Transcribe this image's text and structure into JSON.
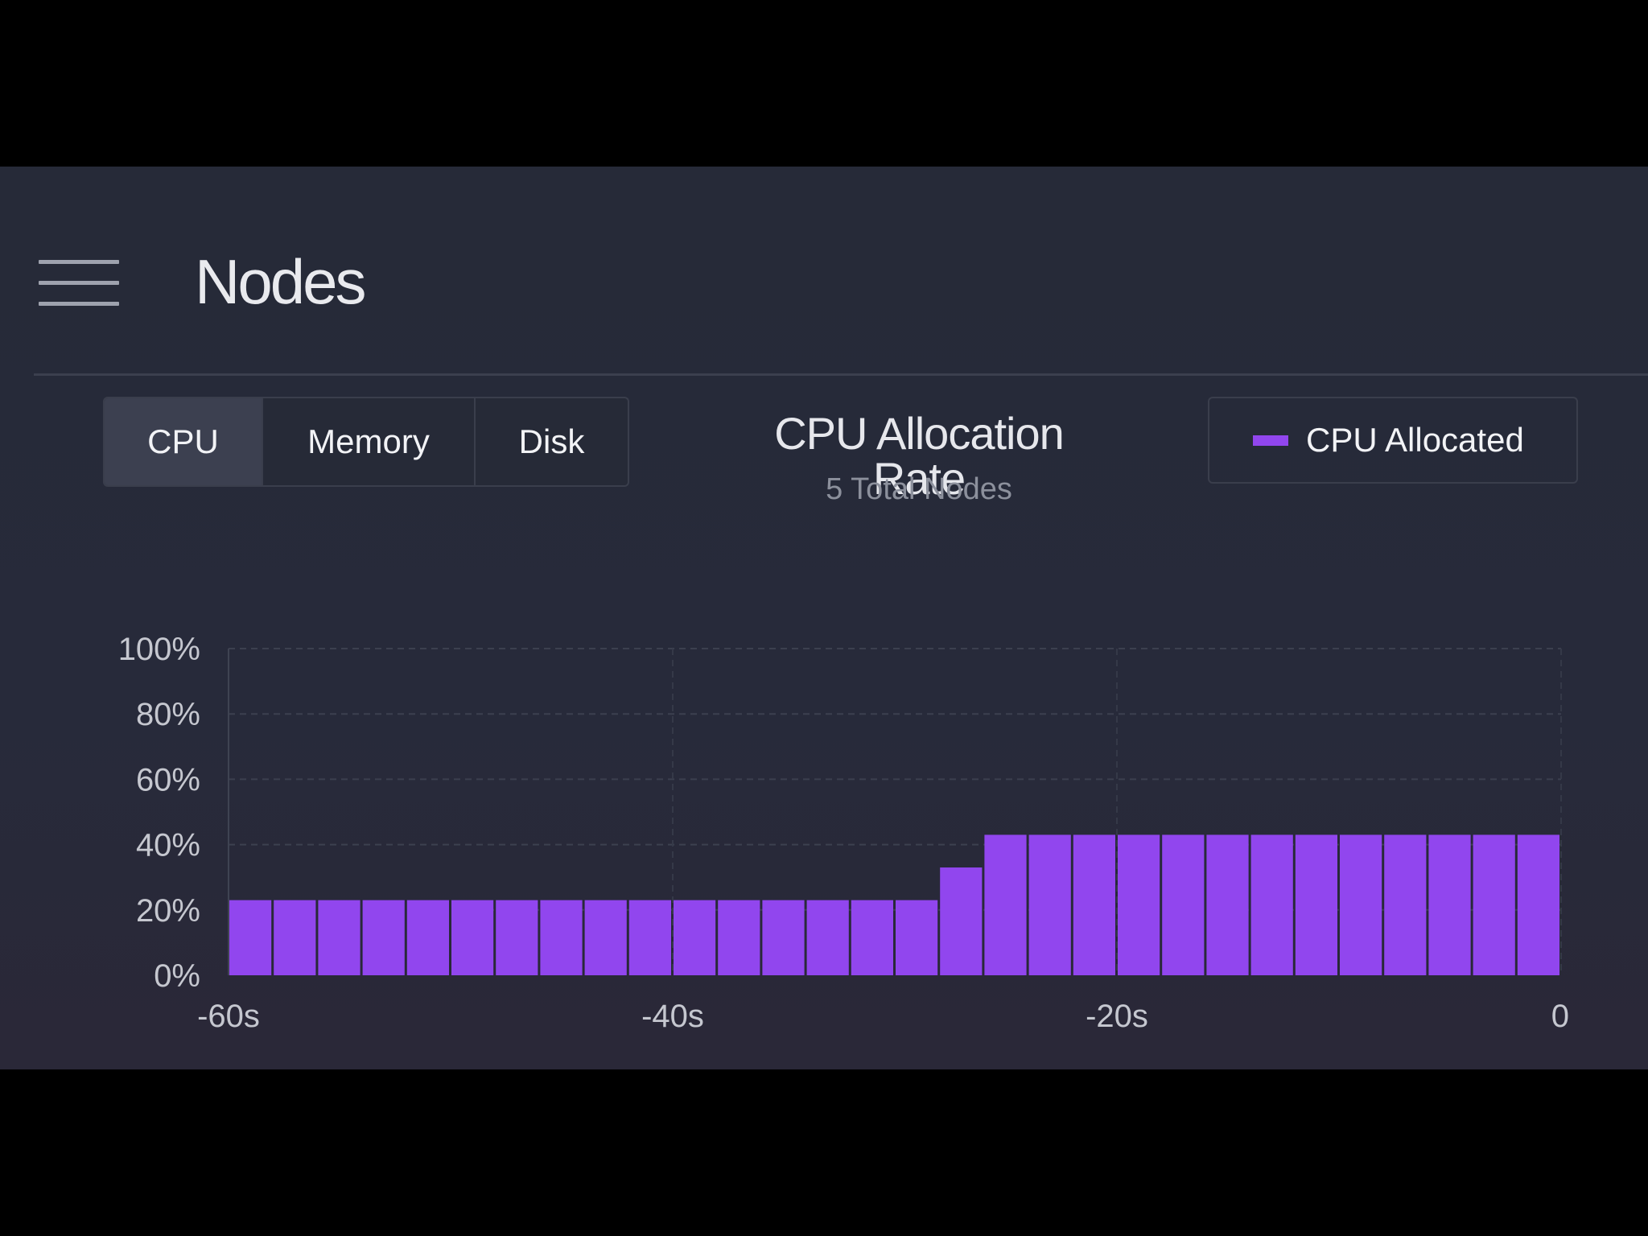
{
  "header": {
    "title": "Nodes",
    "menu_icon": "hamburger-menu-icon"
  },
  "tabs": [
    {
      "label": "CPU",
      "active": true
    },
    {
      "label": "Memory",
      "active": false
    },
    {
      "label": "Disk",
      "active": false
    }
  ],
  "legend": {
    "label": "CPU Allocated",
    "color": "#9146ee"
  },
  "chart_data": {
    "type": "bar",
    "title": "CPU Allocation Rate",
    "subtitle": "5 Total Nodes",
    "xlabel": "",
    "ylabel": "",
    "x_ticks": [
      "-60s",
      "-40s",
      "-20s",
      "0"
    ],
    "y_ticks": [
      "0%",
      "20%",
      "40%",
      "60%",
      "80%",
      "100%"
    ],
    "xlim": [
      -60,
      0
    ],
    "ylim": [
      0,
      100
    ],
    "grid": true,
    "series": [
      {
        "name": "CPU Allocated",
        "color": "#9146ee",
        "values": [
          23,
          23,
          23,
          23,
          23,
          23,
          23,
          23,
          23,
          23,
          23,
          23,
          23,
          23,
          23,
          23,
          33,
          43,
          43,
          43,
          43,
          43,
          43,
          43,
          43,
          43,
          43,
          43,
          43,
          43
        ]
      }
    ]
  }
}
